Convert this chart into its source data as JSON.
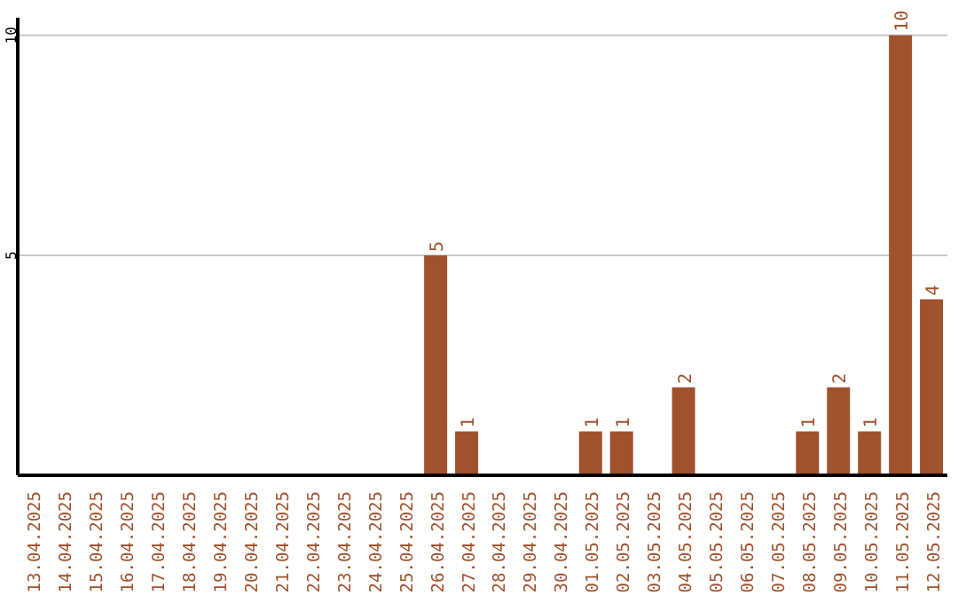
{
  "chart_data": {
    "type": "bar",
    "categories": [
      "13.04.2025",
      "14.04.2025",
      "15.04.2025",
      "16.04.2025",
      "17.04.2025",
      "18.04.2025",
      "19.04.2025",
      "20.04.2025",
      "21.04.2025",
      "22.04.2025",
      "23.04.2025",
      "24.04.2025",
      "25.04.2025",
      "26.04.2025",
      "27.04.2025",
      "28.04.2025",
      "29.04.2025",
      "30.04.2025",
      "01.05.2025",
      "02.05.2025",
      "03.05.2025",
      "04.05.2025",
      "05.05.2025",
      "06.05.2025",
      "07.05.2025",
      "08.05.2025",
      "09.05.2025",
      "10.05.2025",
      "11.05.2025",
      "12.05.2025"
    ],
    "values": [
      0,
      0,
      0,
      0,
      0,
      0,
      0,
      0,
      0,
      0,
      0,
      0,
      0,
      5,
      1,
      0,
      0,
      0,
      1,
      1,
      0,
      2,
      0,
      0,
      0,
      1,
      2,
      1,
      10,
      4
    ],
    "value_labels": [
      null,
      null,
      null,
      null,
      null,
      null,
      null,
      null,
      null,
      null,
      null,
      null,
      null,
      "5",
      "1",
      null,
      null,
      null,
      "1",
      "1",
      null,
      "2",
      null,
      null,
      null,
      "1",
      "2",
      "1",
      "10",
      "4"
    ],
    "color": "#a0522d",
    "ylim": [
      0,
      10.4
    ],
    "yticks": [
      5,
      10
    ],
    "grid": "y"
  }
}
